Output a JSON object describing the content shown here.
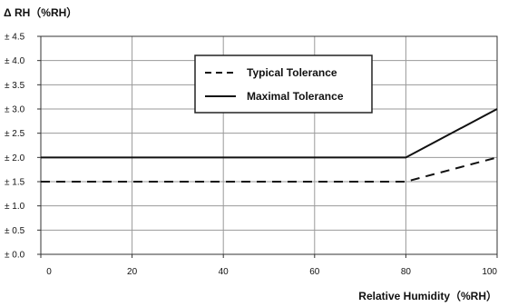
{
  "chart_data": {
    "type": "line",
    "title": "",
    "ylabel": "Δ RH（%RH）",
    "xlabel": "Relative Humidity（%RH）",
    "xlim": [
      0,
      100
    ],
    "ylim": [
      0,
      4.5
    ],
    "x_ticks": [
      0,
      20,
      40,
      60,
      80,
      100
    ],
    "x_tick_labels": [
      "0",
      "20",
      "40",
      "60",
      "80",
      "100"
    ],
    "y_ticks": [
      0,
      0.5,
      1.0,
      1.5,
      2.0,
      2.5,
      3.0,
      3.5,
      4.0,
      4.5
    ],
    "y_tick_labels": [
      "± 0.0",
      "± 0.5",
      "± 1.0",
      "± 1.5",
      "± 2.0",
      "± 2.5",
      "± 3.0",
      "± 3.5",
      "± 4.0",
      "± 4.5"
    ],
    "grid": true,
    "legend_position": "top-right",
    "series": [
      {
        "name": "Typical Tolerance",
        "style": "dashed",
        "color": "#111111",
        "x": [
          0,
          80,
          100
        ],
        "y": [
          1.5,
          1.5,
          2.0
        ]
      },
      {
        "name": "Maximal Tolerance",
        "style": "solid",
        "color": "#111111",
        "x": [
          0,
          80,
          100
        ],
        "y": [
          2.0,
          2.0,
          3.0
        ]
      }
    ]
  }
}
